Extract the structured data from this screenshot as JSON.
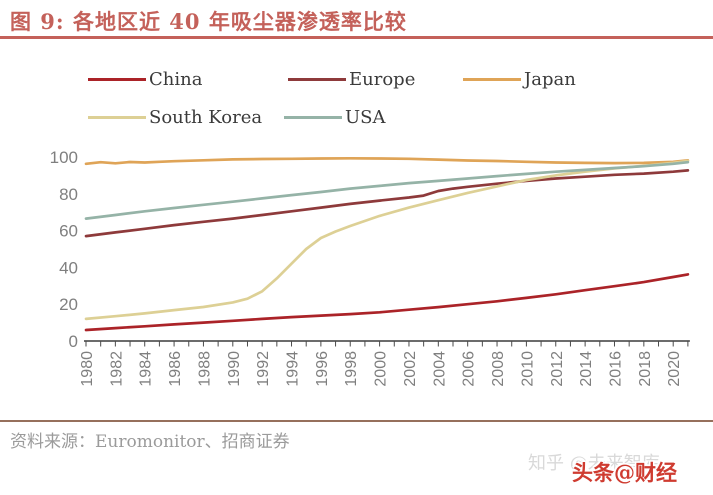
{
  "header": {
    "title": "图 9: 各地区近 40 年吸尘器渗透率比较"
  },
  "colors": {
    "accent": "#c4615a",
    "divider": "#96705c",
    "axis_line": "#3c3c3c",
    "axis_text": "#7f7f7f",
    "legend_text": "#3a3a3a",
    "source_text": "#9b9b9b"
  },
  "chart_data": {
    "type": "line",
    "title": "各地区近40年吸尘器渗透率比较",
    "xlabel": "",
    "ylabel": "",
    "x_range": [
      1980,
      2021
    ],
    "ylim": [
      0,
      100
    ],
    "y_ticks": [
      0,
      20,
      40,
      60,
      80,
      100
    ],
    "x_tick_years_labeled": [
      1980,
      1982,
      1984,
      1986,
      1988,
      1990,
      1992,
      1994,
      1996,
      1998,
      2000,
      2002,
      2004,
      2006,
      2008,
      2010,
      2012,
      2014,
      2016,
      2018,
      2020
    ],
    "grid": false,
    "legend_position": "top",
    "series": [
      {
        "name": "China",
        "color": "#ab2328",
        "points": [
          [
            1980,
            6
          ],
          [
            1982,
            7
          ],
          [
            1984,
            8
          ],
          [
            1986,
            9
          ],
          [
            1988,
            10
          ],
          [
            1990,
            11
          ],
          [
            1992,
            12
          ],
          [
            1994,
            13
          ],
          [
            1996,
            13.8
          ],
          [
            1998,
            14.6
          ],
          [
            2000,
            15.6
          ],
          [
            2002,
            17
          ],
          [
            2004,
            18.4
          ],
          [
            2006,
            20
          ],
          [
            2008,
            21.6
          ],
          [
            2010,
            23.4
          ],
          [
            2012,
            25.4
          ],
          [
            2014,
            27.6
          ],
          [
            2016,
            29.8
          ],
          [
            2018,
            32
          ],
          [
            2020,
            34.8
          ],
          [
            2021,
            36.2
          ]
        ]
      },
      {
        "name": "Europe",
        "color": "#8e3a3b",
        "points": [
          [
            1980,
            57
          ],
          [
            1982,
            59
          ],
          [
            1984,
            61
          ],
          [
            1986,
            63
          ],
          [
            1988,
            64.8
          ],
          [
            1990,
            66.5
          ],
          [
            1992,
            68.5
          ],
          [
            1994,
            70.5
          ],
          [
            1996,
            72.5
          ],
          [
            1998,
            74.5
          ],
          [
            2000,
            76.3
          ],
          [
            2002,
            78
          ],
          [
            2003,
            79
          ],
          [
            2004,
            81.5
          ],
          [
            2005,
            82.8
          ],
          [
            2006,
            83.8
          ],
          [
            2008,
            85.5
          ],
          [
            2010,
            87
          ],
          [
            2012,
            88.3
          ],
          [
            2014,
            89.3
          ],
          [
            2016,
            90.3
          ],
          [
            2018,
            91
          ],
          [
            2020,
            92
          ],
          [
            2021,
            92.7
          ]
        ]
      },
      {
        "name": "Japan",
        "color": "#dfa457",
        "points": [
          [
            1980,
            96.3
          ],
          [
            1981,
            97.2
          ],
          [
            1982,
            96.6
          ],
          [
            1983,
            97.3
          ],
          [
            1984,
            97.0
          ],
          [
            1985,
            97.4
          ],
          [
            1986,
            97.7
          ],
          [
            1988,
            98.2
          ],
          [
            1990,
            98.7
          ],
          [
            1992,
            98.9
          ],
          [
            1994,
            99.0
          ],
          [
            1996,
            99.2
          ],
          [
            1998,
            99.3
          ],
          [
            2000,
            99.2
          ],
          [
            2002,
            99.0
          ],
          [
            2004,
            98.6
          ],
          [
            2006,
            98.1
          ],
          [
            2008,
            97.8
          ],
          [
            2010,
            97.4
          ],
          [
            2012,
            97.0
          ],
          [
            2014,
            96.8
          ],
          [
            2016,
            96.7
          ],
          [
            2018,
            96.8
          ],
          [
            2020,
            97.4
          ],
          [
            2021,
            98.2
          ]
        ]
      },
      {
        "name": "South Korea",
        "color": "#ddd095",
        "points": [
          [
            1980,
            12
          ],
          [
            1982,
            13.5
          ],
          [
            1984,
            15
          ],
          [
            1986,
            16.8
          ],
          [
            1988,
            18.5
          ],
          [
            1990,
            21
          ],
          [
            1991,
            23
          ],
          [
            1992,
            27
          ],
          [
            1993,
            34
          ],
          [
            1994,
            42
          ],
          [
            1995,
            50
          ],
          [
            1996,
            56
          ],
          [
            1997,
            59.5
          ],
          [
            1998,
            62.5
          ],
          [
            2000,
            68
          ],
          [
            2002,
            72.5
          ],
          [
            2004,
            76.5
          ],
          [
            2006,
            80.5
          ],
          [
            2008,
            84
          ],
          [
            2010,
            87.5
          ],
          [
            2012,
            90
          ],
          [
            2014,
            92
          ],
          [
            2016,
            93.8
          ],
          [
            2018,
            95.2
          ],
          [
            2020,
            96.8
          ],
          [
            2021,
            97.8
          ]
        ]
      },
      {
        "name": "USA",
        "color": "#95b3a7",
        "points": [
          [
            1980,
            66.5
          ],
          [
            1982,
            68.5
          ],
          [
            1984,
            70.5
          ],
          [
            1986,
            72.3
          ],
          [
            1988,
            74
          ],
          [
            1990,
            75.7
          ],
          [
            1992,
            77.5
          ],
          [
            1994,
            79.3
          ],
          [
            1996,
            81
          ],
          [
            1998,
            82.8
          ],
          [
            2000,
            84.3
          ],
          [
            2002,
            85.8
          ],
          [
            2004,
            87
          ],
          [
            2006,
            88.3
          ],
          [
            2008,
            89.6
          ],
          [
            2010,
            90.8
          ],
          [
            2012,
            92
          ],
          [
            2014,
            93
          ],
          [
            2016,
            94
          ],
          [
            2018,
            95
          ],
          [
            2020,
            96.3
          ],
          [
            2021,
            97.2
          ]
        ]
      }
    ],
    "legend_rows": [
      [
        "China",
        "Europe",
        "Japan"
      ],
      [
        "South Korea",
        "USA"
      ]
    ]
  },
  "source": {
    "label": "资料来源：Euromonitor、招商证券"
  },
  "watermarks": {
    "zhihu": "知乎 @未来智库",
    "toutiao": "头条@财经"
  }
}
